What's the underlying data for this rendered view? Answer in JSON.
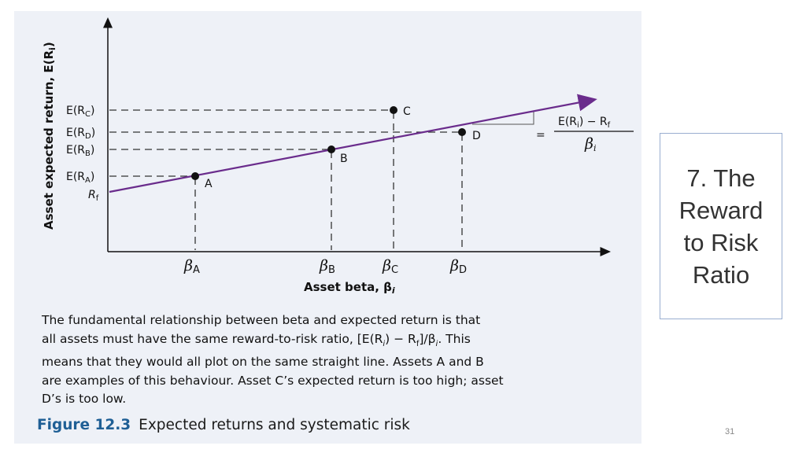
{
  "slide": {
    "title": "7. The Reward to Risk Ratio",
    "page_number": "31"
  },
  "figure": {
    "y_axis_title": "Asset expected return, E(R",
    "y_axis_title_sub": "i",
    "y_axis_title_end": ")",
    "x_axis_title": "Asset beta, β",
    "x_axis_title_sub": "i",
    "y_ticks": [
      {
        "label": "E(R",
        "sub": "C",
        "end": ")"
      },
      {
        "label": "E(R",
        "sub": "D",
        "end": ")"
      },
      {
        "label": "E(R",
        "sub": "B",
        "end": ")"
      },
      {
        "label": "E(R",
        "sub": "A",
        "end": ")"
      },
      {
        "label": "R",
        "sub": "f",
        "end": ""
      }
    ],
    "x_ticks": [
      {
        "label": "β",
        "sub": "A"
      },
      {
        "label": "β",
        "sub": "B"
      },
      {
        "label": "β",
        "sub": "C"
      },
      {
        "label": "β",
        "sub": "D"
      }
    ],
    "points": [
      {
        "label": "A"
      },
      {
        "label": "B"
      },
      {
        "label": "C"
      },
      {
        "label": "D"
      }
    ],
    "ratio": {
      "numerator": "E(R",
      "numerator_sub": "i",
      "numerator_end": ") − R",
      "numerator_end_sub": "f",
      "equals": "=",
      "denominator": "β",
      "denominator_sub": "i"
    },
    "line_color": "#6a2c8c",
    "caption_lines": [
      "The fundamental relationship between beta and expected return is that",
      "all assets must have the same reward-to-risk ratio, [E(R",
      "i",
      ") − R",
      "f",
      "]/β",
      "i",
      ". This",
      "means that they would all plot on the same straight line. Assets A and B",
      "are examples of this behaviour. Asset C’s expected return is too high; asset",
      "D’s is too low."
    ],
    "figure_number": "Figure 12.3",
    "figure_title": "Expected returns and systematic risk"
  }
}
